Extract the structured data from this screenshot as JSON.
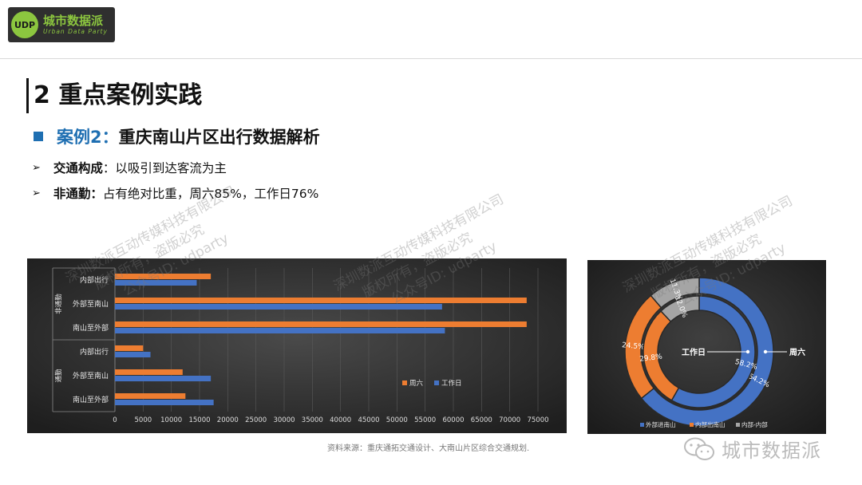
{
  "logo": {
    "mark": "UDP",
    "name": "城市数据派",
    "subtitle": "Urban Data Party"
  },
  "title": "2 重点案例实践",
  "section": {
    "label": "案例2：",
    "title": "重庆南山片区出行数据解析"
  },
  "bullets": [
    {
      "bold": "交通构成",
      "text": "：以吸引到达客流为主"
    },
    {
      "bold": "非通勤：",
      "text": "占有绝对比重，周六85%，工作日76%"
    }
  ],
  "source": "资料来源：重庆通拓交通设计、大南山片区综合交通规划.",
  "brand_watermark": "城市数据派",
  "watermark": {
    "line1": "深圳数派互动传媒科技有限公司",
    "line2": "版权所有，盗版必究",
    "line3": "公众号ID: udparty"
  },
  "colors": {
    "saturday": "#ed7d31",
    "workday": "#4472c4",
    "other": "#a5a5a5",
    "chart_bg": "#3a3a3a",
    "accent": "#1f6fb2"
  },
  "chart_data": [
    {
      "type": "bar",
      "orientation": "horizontal",
      "groups": [
        "非通勤",
        "通勤"
      ],
      "categories": [
        "内部出行",
        "外部至南山",
        "南山至外部",
        "内部出行",
        "外部至南山",
        "南山至外部"
      ],
      "series": [
        {
          "name": "周六",
          "values": [
            17000,
            73000,
            73000,
            5000,
            12000,
            12500
          ]
        },
        {
          "name": "工作日",
          "values": [
            14500,
            58000,
            58500,
            6300,
            17000,
            17500
          ]
        }
      ],
      "xticks": [
        "0",
        "5000",
        "10000",
        "15000",
        "20000",
        "25000",
        "30000",
        "35000",
        "40000",
        "45000",
        "50000",
        "55000",
        "60000",
        "65000",
        "70000",
        "75000"
      ],
      "xlim": [
        0,
        75000
      ],
      "legend": "bottom-right",
      "grid": true
    },
    {
      "type": "pie",
      "style": "double-donut",
      "rings": [
        {
          "name": "周六",
          "values": [
            64.2,
            24.5,
            11.3
          ],
          "labels": [
            "64.2%",
            "24.5%",
            "11.3%"
          ]
        },
        {
          "name": "工作日",
          "values": [
            58.2,
            29.8,
            12.0
          ],
          "labels": [
            "58.2%",
            "29.8%",
            "12.0%"
          ]
        }
      ],
      "categories": [
        "外部进南山",
        "内部出南山",
        "内部-内部"
      ],
      "legend": "bottom"
    }
  ]
}
